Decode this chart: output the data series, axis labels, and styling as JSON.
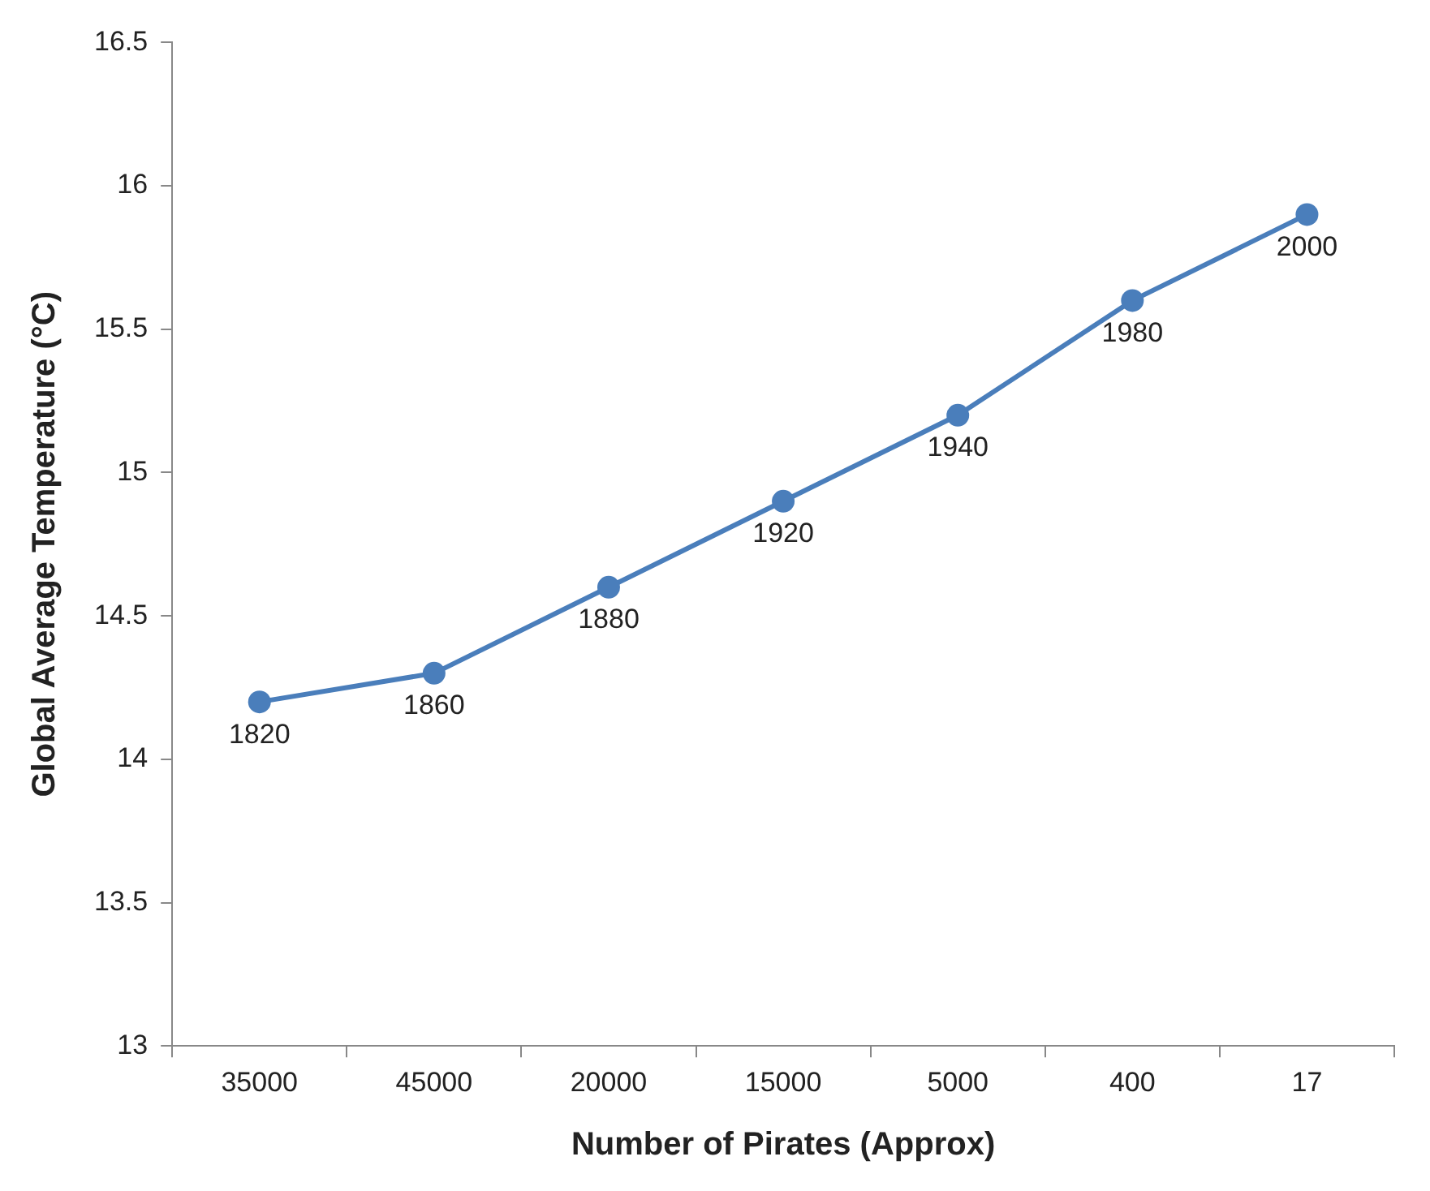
{
  "chart_data": {
    "type": "line",
    "xlabel": "Number of Pirates (Approx)",
    "ylabel": "Global Average Temperature (°C)",
    "categories": [
      "35000",
      "45000",
      "20000",
      "15000",
      "5000",
      "400",
      "17"
    ],
    "series": [
      {
        "color": "#4a7ebb",
        "values": [
          14.2,
          14.3,
          14.6,
          14.9,
          15.2,
          15.6,
          15.9
        ]
      }
    ],
    "ylim": [
      13,
      16.5
    ],
    "yticks": [
      13,
      13.5,
      14,
      14.5,
      15,
      15.5,
      16,
      16.5
    ],
    "grid": false,
    "legend": false,
    "marker": "circle",
    "line_style": "solid",
    "annotations": [
      {
        "text": "1820",
        "x": "35000",
        "y": 14.2
      },
      {
        "text": "1860",
        "x": "45000",
        "y": 14.3
      },
      {
        "text": "1880",
        "x": "20000",
        "y": 14.6
      },
      {
        "text": "1920",
        "x": "15000",
        "y": 14.9
      },
      {
        "text": "1940",
        "x": "5000",
        "y": 15.2
      },
      {
        "text": "1980",
        "x": "400",
        "y": 15.6
      },
      {
        "text": "2000",
        "x": "17",
        "y": 15.9
      }
    ]
  }
}
